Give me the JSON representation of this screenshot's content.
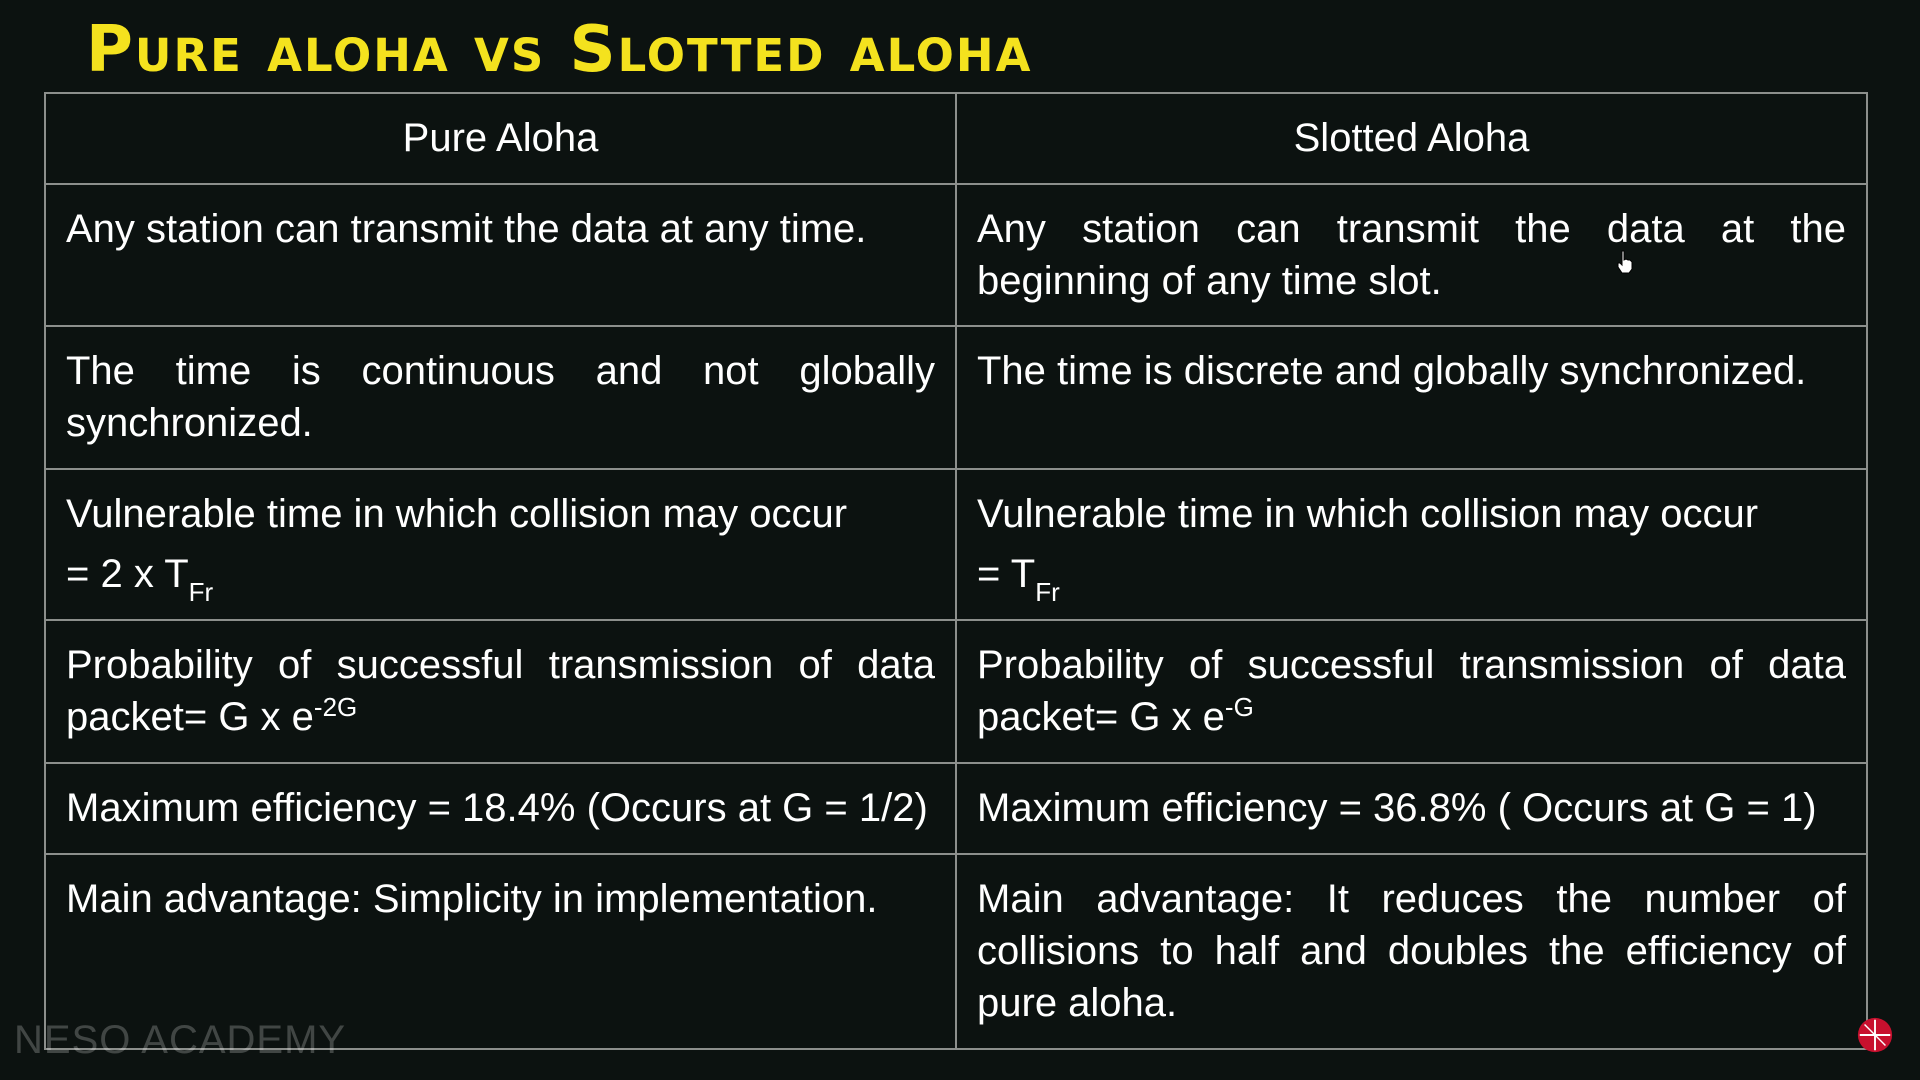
{
  "title": "Pure aloha vs Slotted aloha",
  "colors": {
    "title": "#f4e21e",
    "pure_header": "#f3a23a",
    "slotted_header": "#2fc63a",
    "background": "#0c1210",
    "grid": "#8c8f8c"
  },
  "table": {
    "headers": {
      "pure": "Pure Aloha",
      "slotted": "Slotted Aloha"
    },
    "rows": [
      {
        "pure": "Any station can transmit the data at any time.",
        "slotted": "Any station can transmit the data at the beginning of any time slot."
      },
      {
        "pure": "The time is continuous and not globally synchronized.",
        "slotted": "The time is discrete and globally synchronized."
      },
      {
        "pure": "Vulnerable time in which collision may occur",
        "pure_formula": "= 2 x T",
        "pure_formula_sub": "Fr",
        "slotted": "Vulnerable time in which collision may occur",
        "slotted_formula": "= T",
        "slotted_formula_sub": "Fr"
      },
      {
        "pure": "Probability of successful transmission of data packet= G x e",
        "pure_sup": "-2G",
        "slotted": "Probability of successful transmission of data packet= G x e",
        "slotted_sup": "-G"
      },
      {
        "pure": "Maximum efficiency = 18.4% (Occurs at G = 1/2)",
        "slotted": "Maximum efficiency = 36.8% ( Occurs at G = 1)"
      },
      {
        "pure": "Main advantage: Simplicity in implementation.",
        "slotted": "Main advantage: It reduces the number of collisions to half and doubles the efficiency of pure aloha."
      }
    ]
  },
  "watermark": "NESO ACADEMY",
  "icons": {
    "logo": "neso-logo-icon",
    "cursor": "hand-cursor-icon"
  }
}
